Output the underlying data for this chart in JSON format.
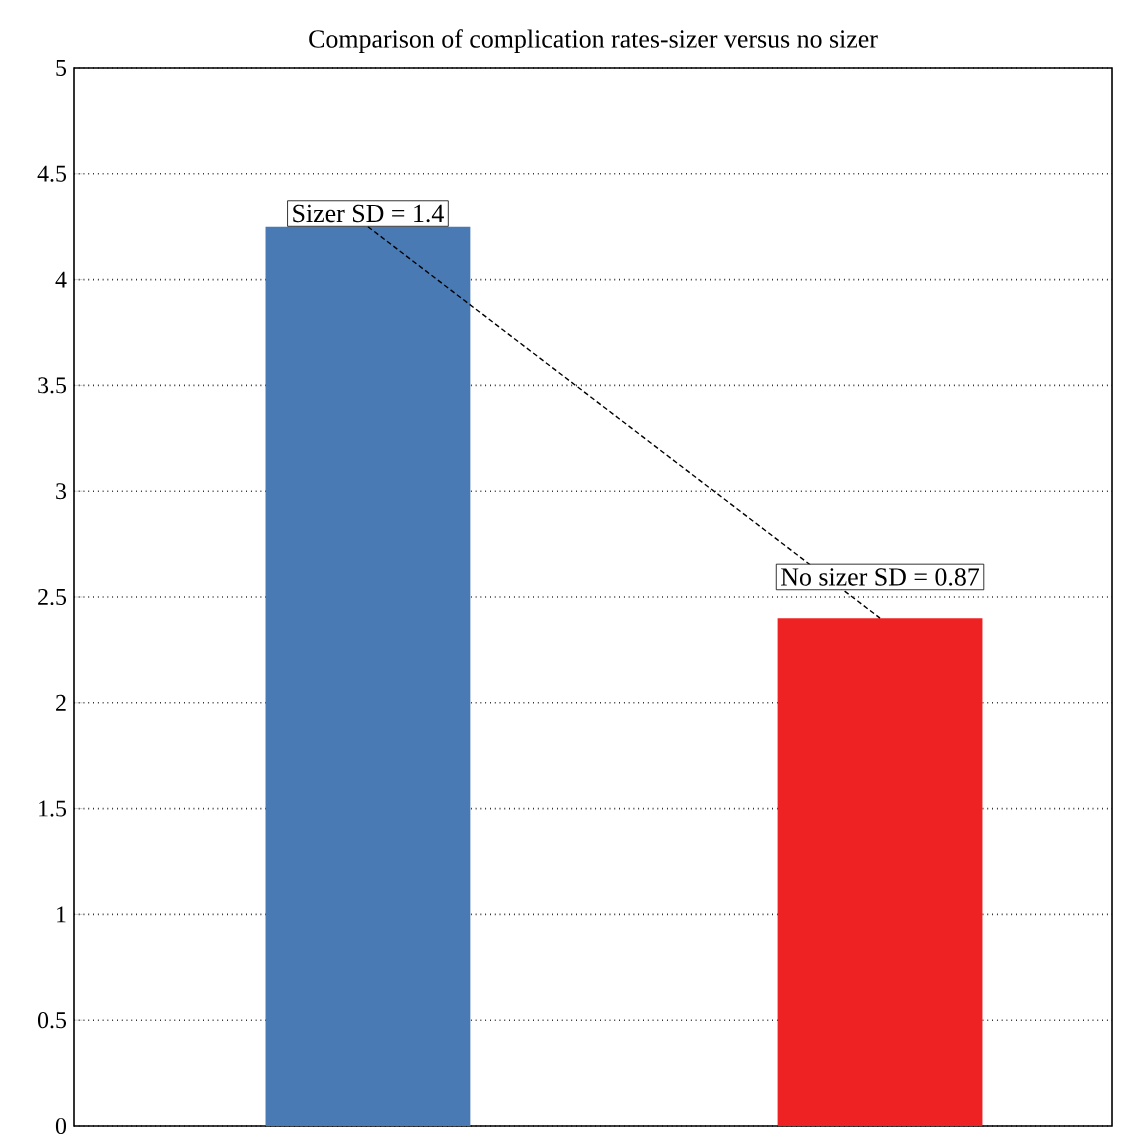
{
  "chart_data": {
    "type": "bar",
    "title": "Comparison of complication rates-sizer versus no sizer",
    "categories": [
      null,
      null
    ],
    "series": [
      {
        "colors": [
          "#4a7ab4",
          "#ee2222"
        ],
        "values": [
          4.25,
          2.4
        ]
      },
      {
        "type": "line",
        "color": "#000000",
        "line_style": "dashed",
        "marker": "none",
        "values": [
          4.25,
          2.4
        ]
      }
    ],
    "ylim": [
      0,
      5
    ],
    "yticks": [
      0,
      0.5,
      1,
      1.5,
      2,
      2.5,
      3,
      3.5,
      4,
      4.5,
      5
    ],
    "grid": "y",
    "annotations": [
      "Sizer SD = 1.4",
      "No sizer SD = 0.87"
    ]
  }
}
